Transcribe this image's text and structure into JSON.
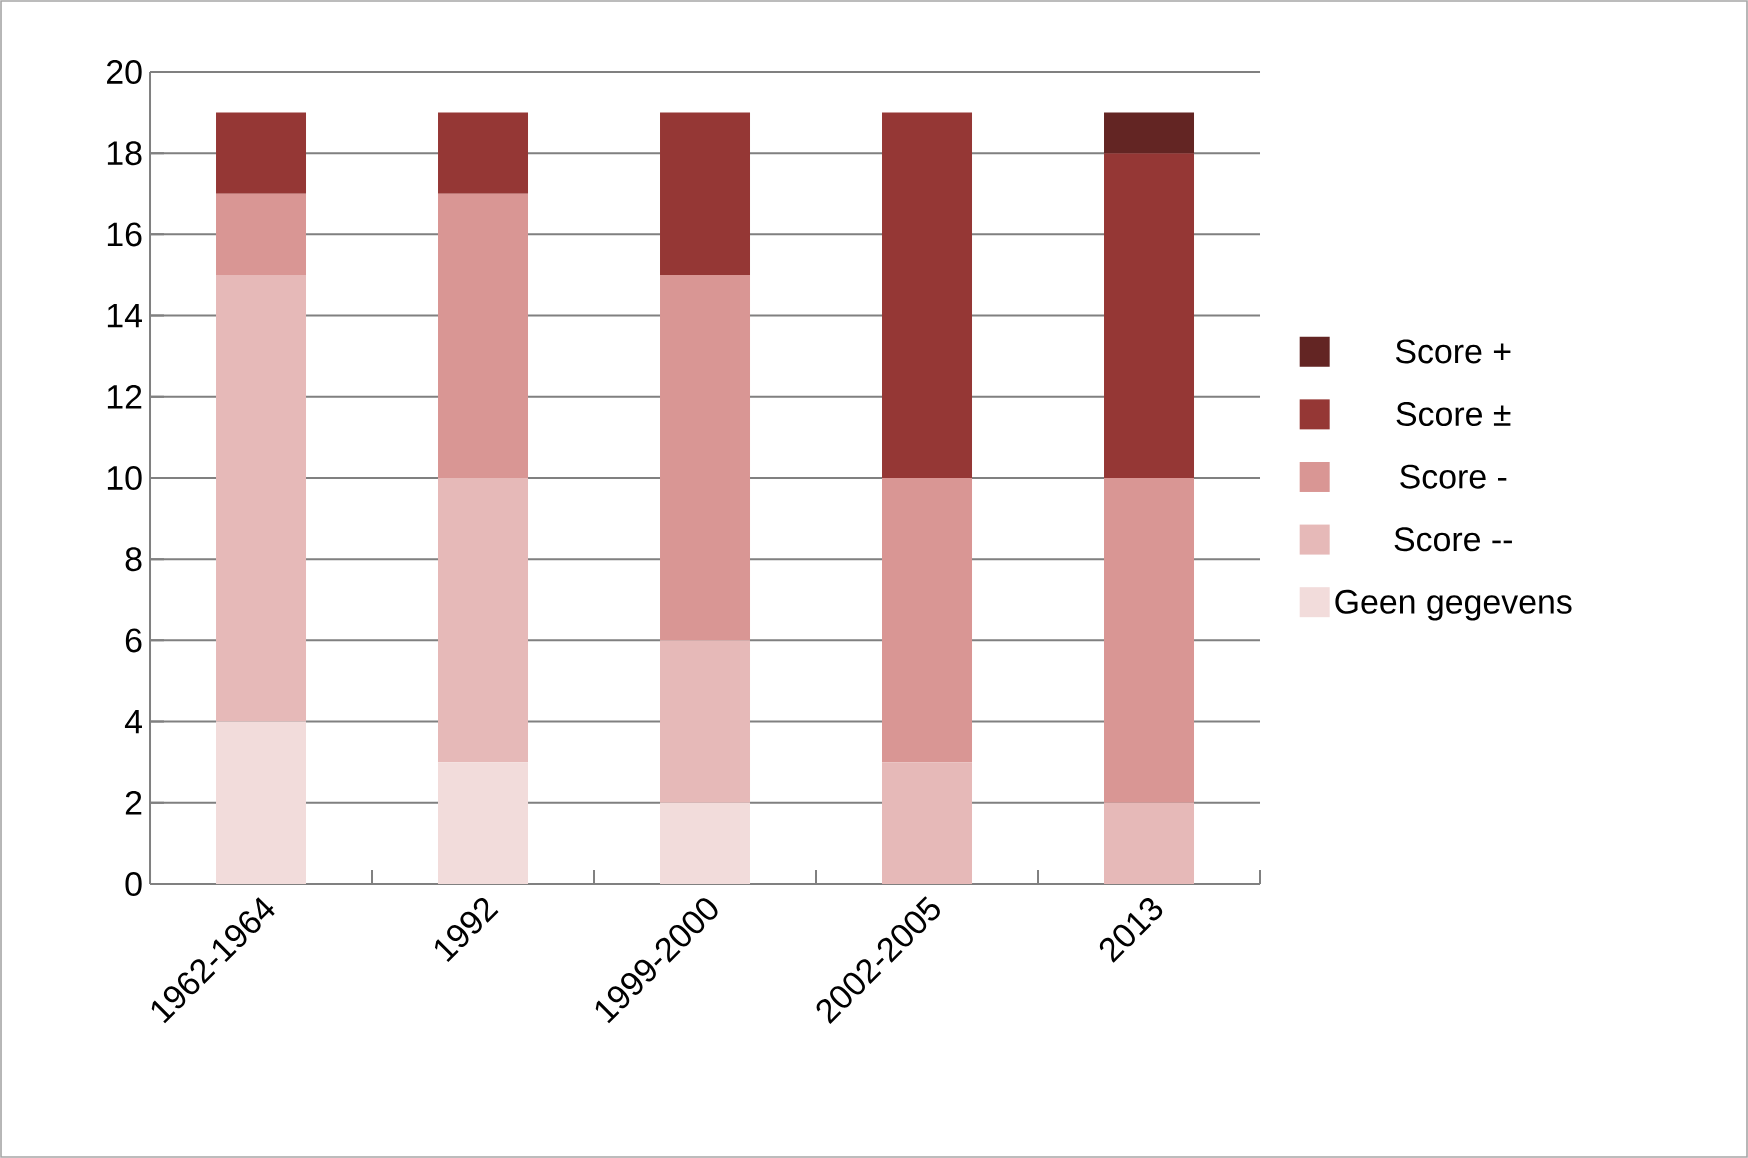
{
  "chart_data": {
    "type": "bar",
    "stacked": true,
    "categories": [
      "1962-1964",
      "1992",
      "1999-2000",
      "2002-2005",
      "2013"
    ],
    "series": [
      {
        "name": "Geen gegevens",
        "color": "#f2dcdb",
        "values": [
          4,
          3,
          2,
          0,
          0
        ]
      },
      {
        "name": "Score --",
        "color": "#e6b9b8",
        "values": [
          11,
          7,
          4,
          3,
          2
        ]
      },
      {
        "name": "Score -",
        "color": "#d99694",
        "values": [
          2,
          7,
          9,
          7,
          8
        ]
      },
      {
        "name": "Score ±",
        "color": "#953735",
        "values": [
          2,
          2,
          4,
          9,
          8
        ]
      },
      {
        "name": "Score +",
        "color": "#632523",
        "values": [
          0,
          0,
          0,
          0,
          1
        ]
      }
    ],
    "ylim": [
      0,
      20
    ],
    "yticks": [
      0,
      2,
      4,
      6,
      8,
      10,
      12,
      14,
      16,
      18,
      20
    ],
    "grid": "y",
    "legend": "right"
  }
}
